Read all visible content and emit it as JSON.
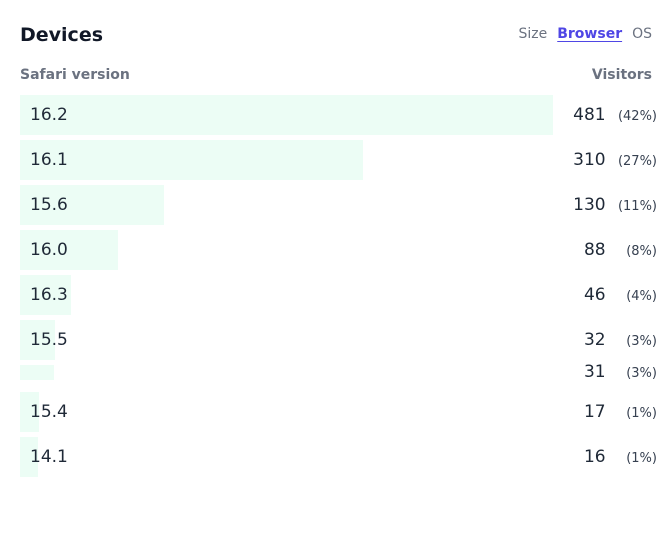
{
  "header": {
    "title": "Devices",
    "tabs": [
      {
        "label": "Size",
        "active": false
      },
      {
        "label": "Browser",
        "active": true
      },
      {
        "label": "OS",
        "active": false
      }
    ]
  },
  "columns": {
    "left": "Safari version",
    "right": "Visitors"
  },
  "colors": {
    "accent": "#4f46e5",
    "bar": "#ecfdf5"
  },
  "rows": [
    {
      "label": "16.2",
      "visitors": "481",
      "pct": "(42%)",
      "fraction": 1.0
    },
    {
      "label": "16.1",
      "visitors": "310",
      "pct": "(27%)",
      "fraction": 0.644
    },
    {
      "label": "15.6",
      "visitors": "130",
      "pct": "(11%)",
      "fraction": 0.27
    },
    {
      "label": "16.0",
      "visitors": "88",
      "pct": "(8%)",
      "fraction": 0.183
    },
    {
      "label": "16.3",
      "visitors": "46",
      "pct": "(4%)",
      "fraction": 0.096
    },
    {
      "label": "15.5",
      "visitors": "32",
      "pct": "(3%)",
      "fraction": 0.066
    },
    {
      "label": "",
      "visitors": "31",
      "pct": "(3%)",
      "fraction": 0.064
    },
    {
      "label": "15.4",
      "visitors": "17",
      "pct": "(1%)",
      "fraction": 0.035
    },
    {
      "label": "14.1",
      "visitors": "16",
      "pct": "(1%)",
      "fraction": 0.033
    }
  ]
}
